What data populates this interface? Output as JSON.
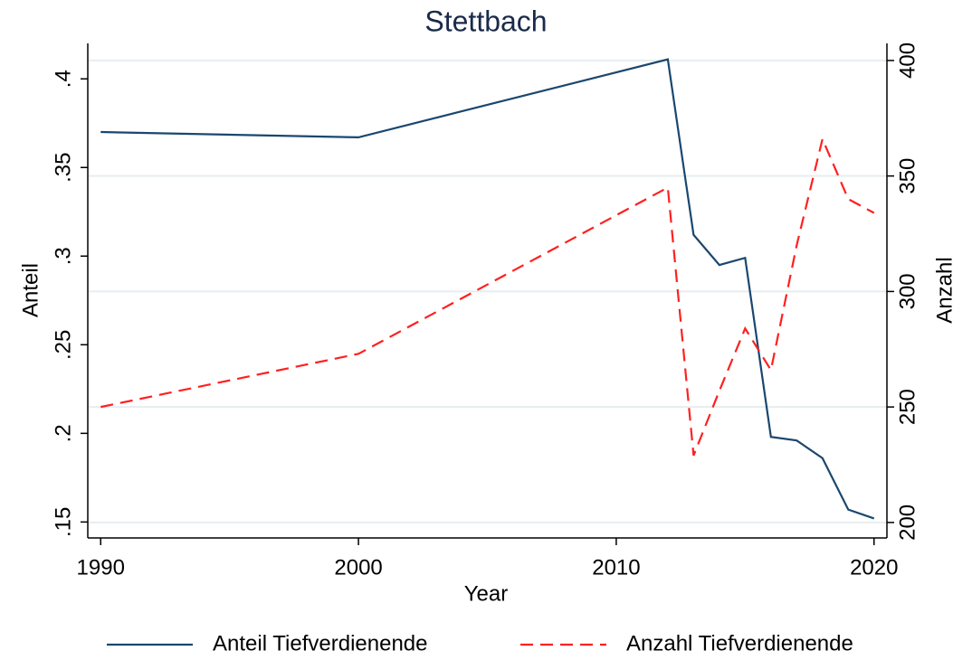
{
  "chart_data": {
    "type": "line",
    "title": "Stettbach",
    "xlabel": "Year",
    "ylabel": "Anteil",
    "y2label": "Anzahl",
    "x": [
      1990,
      2000,
      2012,
      2013,
      2014,
      2015,
      2016,
      2017,
      2018,
      2019,
      2020
    ],
    "series": [
      {
        "name": "Anteil Tiefverdienende",
        "color": "#1a476f",
        "style": "solid",
        "axis": "y",
        "values": [
          0.37,
          0.367,
          0.411,
          0.312,
          0.295,
          0.299,
          0.198,
          0.196,
          0.186,
          0.157,
          0.152
        ]
      },
      {
        "name": "Anzahl Tiefverdienende",
        "color": "#ff2020",
        "style": "dashed",
        "axis": "y2",
        "values": [
          250,
          273,
          345,
          229,
          257,
          284,
          266,
          320,
          366,
          340,
          334
        ]
      }
    ],
    "xlim": [
      1989.5,
      2020.5
    ],
    "xticks": [
      1990,
      2000,
      2010,
      2020
    ],
    "ylim": [
      0.141,
      0.42
    ],
    "yticks": [
      {
        "value": 0.15,
        "label": ".15"
      },
      {
        "value": 0.2,
        "label": ".2"
      },
      {
        "value": 0.25,
        "label": ".25"
      },
      {
        "value": 0.3,
        "label": ".3"
      },
      {
        "value": 0.35,
        "label": ".35"
      },
      {
        "value": 0.4,
        "label": ".4"
      }
    ],
    "y2lim": [
      193.3,
      407.4
    ],
    "y2ticks": [
      200,
      250,
      300,
      350,
      400
    ],
    "grid": "y2",
    "legend": "bottom"
  }
}
